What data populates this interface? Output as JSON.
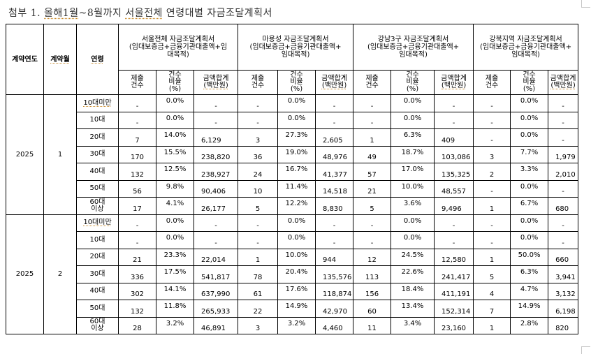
{
  "title": {
    "prefix": "첨부 1. ",
    "part1": "올해1월",
    "part2": "~8월까지 ",
    "part3": "서울전체",
    "part4": " 연령대별 자금조달계획서"
  },
  "table": {
    "fixed_headers": {
      "year": "계약연도",
      "month": "계약월",
      "age": "연령"
    },
    "groups": [
      {
        "title": "서울전체 자금조달계획서",
        "subtitle1": "(임대보증금+금융기관대출액+임",
        "subtitle2": "대목적)"
      },
      {
        "title": "마용성 자금조달계획서",
        "subtitle1": "(임대보증금+금융기관대출액+",
        "subtitle2": "임대목적)"
      },
      {
        "title": "강남3구 자금조달계획서",
        "subtitle1": "(임대보증금+금융기관대출액+",
        "subtitle2": "임대목적)"
      },
      {
        "title": "강북지역 자금조달계획서",
        "subtitle1": "(임대보증금+금융기관대출액+",
        "subtitle2": "임대목적)"
      }
    ],
    "sub_headers": {
      "count_l1": "제출",
      "count_l2": "건수",
      "ratio_l1": "건수",
      "ratio_l2": "비율",
      "ratio_l3": "(%)",
      "amount_l1": "금액합계",
      "amount_l2": "(백만원)"
    },
    "blocks": [
      {
        "year": "2025",
        "month": "1",
        "rows": [
          {
            "age": "10대미만",
            "age2": "",
            "cells": [
              "-",
              "0.0%",
              "-",
              "-",
              "0.0%",
              "-",
              "-",
              "0.0%",
              "-",
              "-",
              "0.0%",
              "-"
            ]
          },
          {
            "age": "10대",
            "age2": "",
            "cells": [
              "-",
              "0.0%",
              "-",
              "-",
              "0.0%",
              "-",
              "-",
              "0.0%",
              "-",
              "-",
              "0.0%",
              "-"
            ]
          },
          {
            "age": "20대",
            "age2": "",
            "cells": [
              "7",
              "14.0%",
              "6,129",
              "3",
              "27.3%",
              "2,605",
              "1",
              "6.3%",
              "409",
              "-",
              "0.0%",
              "-"
            ]
          },
          {
            "age": "30대",
            "age2": "",
            "cells": [
              "170",
              "15.5%",
              "238,820",
              "36",
              "19.0%",
              "48,976",
              "49",
              "18.7%",
              "103,086",
              "3",
              "7.7%",
              "1,979"
            ]
          },
          {
            "age": "40대",
            "age2": "",
            "cells": [
              "132",
              "12.5%",
              "238,927",
              "24",
              "16.7%",
              "41,377",
              "57",
              "17.0%",
              "135,325",
              "2",
              "3.3%",
              "2,010"
            ]
          },
          {
            "age": "50대",
            "age2": "",
            "cells": [
              "56",
              "9.8%",
              "90,406",
              "10",
              "11.4%",
              "14,518",
              "21",
              "10.0%",
              "48,557",
              "-",
              "0.0%",
              "-"
            ]
          },
          {
            "age": "60대",
            "age2": "이상",
            "cells": [
              "17",
              "4.1%",
              "26,177",
              "5",
              "12.2%",
              "8,830",
              "5",
              "3.6%",
              "9,496",
              "1",
              "6.7%",
              "680"
            ]
          }
        ]
      },
      {
        "year": "2025",
        "month": "2",
        "rows": [
          {
            "age": "10대미만",
            "age2": "",
            "cells": [
              "-",
              "0.0%",
              "-",
              "-",
              "0.0%",
              "-",
              "-",
              "0.0%",
              "-",
              "-",
              "0.0%",
              "-"
            ]
          },
          {
            "age": "10대",
            "age2": "",
            "cells": [
              "-",
              "0.0%",
              "-",
              "-",
              "0.0%",
              "-",
              "-",
              "0.0%",
              "-",
              "-",
              "0.0%",
              "-"
            ]
          },
          {
            "age": "20대",
            "age2": "",
            "cells": [
              "21",
              "23.3%",
              "22,014",
              "1",
              "10.0%",
              "944",
              "12",
              "24.5%",
              "12,580",
              "1",
              "50.0%",
              "660"
            ]
          },
          {
            "age": "30대",
            "age2": "",
            "cells": [
              "336",
              "17.5%",
              "541,817",
              "78",
              "20.4%",
              "135,576",
              "113",
              "22.6%",
              "241,417",
              "5",
              "6.3%",
              "3,941"
            ]
          },
          {
            "age": "40대",
            "age2": "",
            "cells": [
              "302",
              "14.1%",
              "637,990",
              "61",
              "17.6%",
              "118,874",
              "156",
              "18.4%",
              "411,191",
              "4",
              "4.7%",
              "3,132"
            ]
          },
          {
            "age": "50대",
            "age2": "",
            "cells": [
              "132",
              "11.8%",
              "265,933",
              "22",
              "14.9%",
              "42,970",
              "60",
              "13.4%",
              "152,314",
              "7",
              "14.9%",
              "6,198"
            ]
          },
          {
            "age": "60대",
            "age2": "이상",
            "cells": [
              "28",
              "3.2%",
              "46,891",
              "3",
              "3.2%",
              "4,460",
              "11",
              "3.4%",
              "23,160",
              "1",
              "2.8%",
              "820"
            ]
          }
        ]
      }
    ]
  }
}
